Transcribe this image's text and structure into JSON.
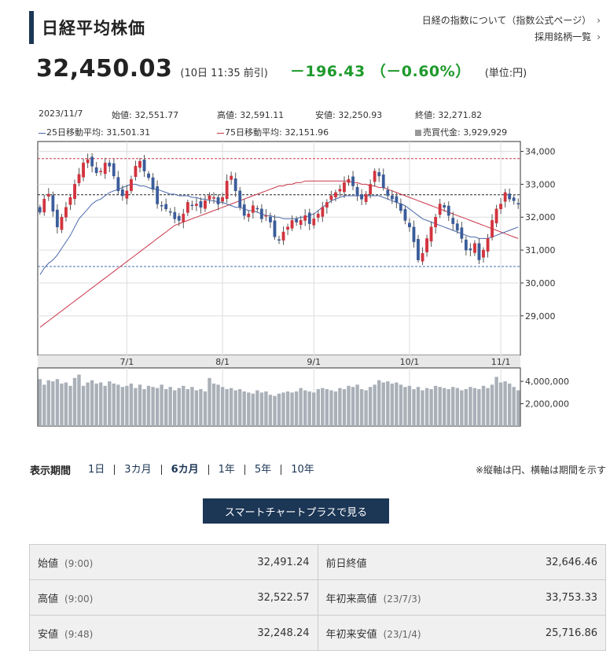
{
  "header": {
    "title": "日経平均株価",
    "links": [
      "日経の指数について（指数公式ページ）",
      "採用銘柄一覧"
    ],
    "chevron": "›"
  },
  "quote": {
    "price": "32,450.03",
    "time": "(10日 11:35 前引)",
    "change": "－196.43 （－0.60%）",
    "unit": "(単位:円)"
  },
  "ohlc": {
    "date": "2023/11/7",
    "open": "始値: 32,551.77",
    "high": "高値: 32,591.11",
    "low": "安値: 32,250.93",
    "close": "終値: 32,271.82"
  },
  "legend": {
    "ma25": "25日移動平均: 31,501.31",
    "ma75": "75日移動平均: 32,151.96",
    "volume": "売買代金: 3,929,929"
  },
  "chart_data": {
    "type": "candlestick",
    "y_ticks": [
      "34,000",
      "33,000",
      "32,000",
      "31,000",
      "30,000",
      "29,000"
    ],
    "y_range": [
      27800,
      34300
    ],
    "x_ticks": [
      "7/1",
      "8/1",
      "9/1",
      "10/1",
      "11/1"
    ],
    "vol_ticks": [
      "4,000,000",
      "2,000,000"
    ],
    "reference_lines": {
      "upper": 33780,
      "middle": 32680,
      "lower": 30500
    },
    "closes": [
      32150,
      32550,
      32700,
      32180,
      31700,
      32000,
      32300,
      32600,
      33000,
      33300,
      33650,
      33750,
      33550,
      33350,
      33400,
      33650,
      33550,
      33250,
      32800,
      32650,
      32800,
      33150,
      33550,
      33700,
      33400,
      33200,
      32850,
      32400,
      32350,
      32250,
      32150,
      31950,
      31900,
      32100,
      32450,
      32350,
      32400,
      32300,
      32500,
      32650,
      32600,
      32400,
      32600,
      33100,
      33250,
      32800,
      32300,
      32050,
      32100,
      32350,
      32250,
      31950,
      32050,
      31850,
      31400,
      31300,
      31550,
      31700,
      31900,
      31850,
      31900,
      32050,
      31800,
      31950,
      32100,
      32300,
      32450,
      32650,
      32750,
      32850,
      33050,
      33150,
      32950,
      32650,
      32550,
      32700,
      33000,
      33400,
      33250,
      32900,
      32650,
      32550,
      32450,
      32200,
      31900,
      31700,
      31250,
      30700,
      30900,
      31350,
      31700,
      32000,
      32400,
      32300,
      32050,
      31800,
      31600,
      31350,
      31000,
      31000,
      31200,
      30700,
      31000,
      31350,
      31900,
      32250,
      32400,
      32750,
      32550,
      32500,
      32400
    ],
    "ma25": [
      30250,
      30450,
      30600,
      30700,
      30850,
      31050,
      31250,
      31450,
      31700,
      31950,
      32100,
      32250,
      32400,
      32500,
      32550,
      32650,
      32750,
      32800,
      32850,
      32900,
      32950,
      33000,
      33000,
      32950,
      32950,
      32900,
      32850,
      32850,
      32800,
      32750,
      32700,
      32700,
      32650,
      32650,
      32650,
      32600,
      32600,
      32550,
      32550,
      32500,
      32500,
      32450,
      32450,
      32400,
      32350,
      32300,
      32300,
      32250,
      32200,
      32200,
      32150,
      32100,
      32050,
      32050,
      32000,
      32000,
      31950,
      31950,
      31950,
      31950,
      32000,
      32000,
      32050,
      32100,
      32200,
      32300,
      32400,
      32500,
      32550,
      32600,
      32650,
      32650,
      32650,
      32650,
      32650,
      32650,
      32650,
      32650,
      32650,
      32600,
      32550,
      32500,
      32450,
      32400,
      32350,
      32250,
      32150,
      32050,
      31950,
      31900,
      31850,
      31800,
      31750,
      31700,
      31650,
      31600,
      31550,
      31500,
      31450,
      31400,
      31400,
      31350,
      31350,
      31350,
      31400,
      31450,
      31500,
      31550,
      31600,
      31650,
      31700
    ],
    "ma75": [
      28650,
      28750,
      28850,
      28950,
      29050,
      29150,
      29250,
      29350,
      29450,
      29550,
      29650,
      29750,
      29850,
      29950,
      30050,
      30150,
      30250,
      30350,
      30450,
      30550,
      30650,
      30750,
      30850,
      30950,
      31050,
      31150,
      31250,
      31350,
      31450,
      31550,
      31650,
      31750,
      31800,
      31850,
      31900,
      31950,
      32000,
      32050,
      32100,
      32150,
      32200,
      32250,
      32300,
      32350,
      32400,
      32450,
      32500,
      32550,
      32600,
      32650,
      32700,
      32750,
      32800,
      32850,
      32900,
      32950,
      32950,
      33000,
      33000,
      33050,
      33050,
      33100,
      33100,
      33100,
      33100,
      33100,
      33100,
      33100,
      33100,
      33100,
      33100,
      33100,
      33050,
      33050,
      33000,
      33000,
      32950,
      32950,
      32900,
      32900,
      32850,
      32800,
      32750,
      32700,
      32650,
      32600,
      32550,
      32500,
      32450,
      32400,
      32350,
      32300,
      32250,
      32200,
      32150,
      32100,
      32050,
      32000,
      31950,
      31900,
      31850,
      31800,
      31750,
      31700,
      31650,
      31600,
      31550,
      31500,
      31450,
      31400,
      31350
    ],
    "volumes": [
      4200000,
      3700000,
      4100000,
      4000000,
      4200000,
      3800000,
      3900000,
      3600000,
      4300000,
      4600000,
      3600000,
      3900000,
      4100000,
      3800000,
      3900000,
      3600000,
      4000000,
      3800000,
      3700000,
      3500000,
      3600000,
      3800000,
      3400000,
      3700000,
      3300000,
      3600000,
      3500000,
      3400000,
      3700000,
      3300000,
      3500000,
      3200000,
      3400000,
      3600000,
      3300000,
      3500000,
      3200000,
      3300000,
      3100000,
      4300000,
      3800000,
      3700000,
      3500000,
      3300000,
      3400000,
      3200000,
      3300000,
      3100000,
      3000000,
      2900000,
      3200000,
      3000000,
      3100000,
      2800000,
      2700000,
      2900000,
      3000000,
      3100000,
      3000000,
      3100000,
      3400000,
      3200000,
      3100000,
      3000000,
      3300000,
      3400000,
      3300000,
      3200000,
      3100000,
      3400000,
      3300000,
      3600000,
      3500000,
      3700000,
      3300000,
      3200000,
      3500000,
      3700000,
      4100000,
      3900000,
      4000000,
      3800000,
      3900000,
      3700000,
      3500000,
      3600000,
      3300000,
      3500000,
      3200000,
      3400000,
      3300000,
      3600000,
      3500000,
      3400000,
      3300000,
      3500000,
      3400000,
      3200000,
      3300000,
      3500000,
      3400000,
      3300000,
      3600000,
      3400000,
      3700000,
      4400000,
      3900000,
      4000000,
      3800000,
      3500000,
      3200000
    ]
  },
  "period": {
    "label": "表示期間",
    "options": [
      "1日",
      "3カ月",
      "6カ月",
      "1年",
      "5年",
      "10年"
    ],
    "active": "6カ月"
  },
  "note": "※縦軸は円、横軸は期間を示す",
  "button": "スマートチャートプラスで見る",
  "stats": [
    {
      "label": "始値",
      "sub": "(9:00)",
      "value": "32,491.24",
      "label2": "前日終値",
      "sub2": "",
      "value2": "32,646.46"
    },
    {
      "label": "高値",
      "sub": "(9:00)",
      "value": "32,522.57",
      "label2": "年初来高値",
      "sub2": "(23/7/3)",
      "value2": "33,753.33"
    },
    {
      "label": "安値",
      "sub": "(9:48)",
      "value": "32,248.24",
      "label2": "年初来安値",
      "sub2": "(23/1/4)",
      "value2": "25,716.86"
    }
  ]
}
